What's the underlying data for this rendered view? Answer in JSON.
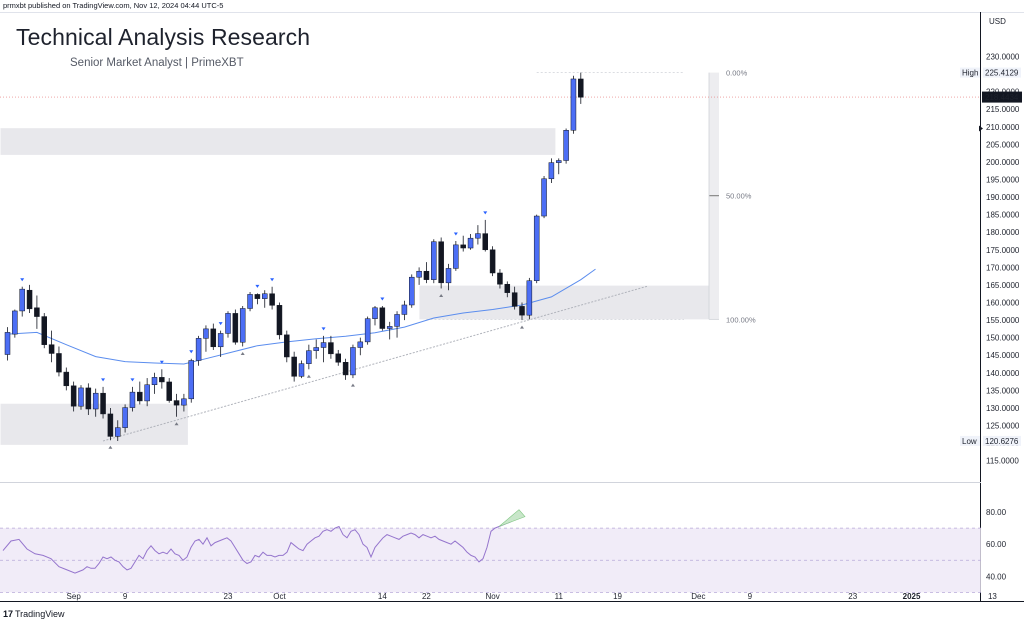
{
  "header": {
    "attribution": "prmxbt published on TradingView.com, Nov 12, 2024 04:44 UTC-5",
    "title": "Technical Analysis Research",
    "subtitle": "Senior Market Analyst | PrimeXBT"
  },
  "footer": {
    "logo_mark": "17",
    "logo_text": "TradingView"
  },
  "colors": {
    "bull": "#4c6ef5",
    "bear": "#131722",
    "ma": "#5b8dee",
    "rsi": "#9575cd",
    "zone": "#e8e8ec",
    "fib": "#cfd2d8"
  },
  "chart_data": {
    "type": "candlestick",
    "currency": "USD",
    "price_axis": {
      "ylim": [
        113.2,
        234.4
      ],
      "ticks": [
        "230.0000",
        "225.0000",
        "220.0000",
        "215.0000",
        "210.0000",
        "205.0000",
        "200.0000",
        "195.0000",
        "190.0000",
        "185.0000",
        "180.0000",
        "175.0000",
        "170.0000",
        "165.0000",
        "160.0000",
        "155.0000",
        "150.0000",
        "145.0000",
        "140.0000",
        "135.0000",
        "130.0000",
        "125.0000",
        "120.0000",
        "115.0000"
      ]
    },
    "labels": {
      "high": {
        "text": "High",
        "value": "225.4129"
      },
      "current": {
        "value": "218.4434"
      },
      "low": {
        "text": "Low",
        "value": "120.6276"
      }
    },
    "fib_levels": [
      {
        "label": "0.00%",
        "price": 225.4129
      },
      {
        "label": "50.00%",
        "price": 190.4
      },
      {
        "label": "100.00%",
        "price": 155.2
      }
    ],
    "zones": [
      {
        "name": "upper-resistance-zone",
        "start_index": 0,
        "end_index": 74,
        "low": 202.0,
        "high": 209.6
      },
      {
        "name": "mid-support-zone",
        "start_index": 57,
        "end_index": 96,
        "low": 155.2,
        "high": 164.8
      },
      {
        "name": "lower-support-zone",
        "start_index": 0,
        "end_index": 24,
        "low": 119.5,
        "high": 131.2
      }
    ],
    "trendline": {
      "from": {
        "index": 13,
        "price": 120.6
      },
      "to": {
        "index": 87,
        "price": 164.6
      }
    },
    "x_axis": {
      "tick_labels": [
        {
          "label": "Sep",
          "index": 9
        },
        {
          "label": "9",
          "index": 16
        },
        {
          "label": "23",
          "index": 30
        },
        {
          "label": "Oct",
          "index": 37
        },
        {
          "label": "14",
          "index": 51
        },
        {
          "label": "22",
          "index": 57
        },
        {
          "label": "Nov",
          "index": 66
        },
        {
          "label": "11",
          "index": 75
        },
        {
          "label": "19",
          "index": 83
        },
        {
          "label": "Dec",
          "index": 94
        },
        {
          "label": "9",
          "index": 101
        },
        {
          "label": "23",
          "index": 115
        },
        {
          "label": "2025",
          "index": 123
        },
        {
          "label": "13",
          "index": 134
        }
      ]
    },
    "candles": [
      [
        145.2,
        153.0,
        143.5,
        151.5
      ],
      [
        151.0,
        158.0,
        150.0,
        157.6
      ],
      [
        157.6,
        164.5,
        156.0,
        163.8
      ],
      [
        163.5,
        165.0,
        157.0,
        158.2
      ],
      [
        158.5,
        162.0,
        152.5,
        156.0
      ],
      [
        156.0,
        157.0,
        147.0,
        148.0
      ],
      [
        148.0,
        152.0,
        143.0,
        145.5
      ],
      [
        145.5,
        147.5,
        139.0,
        140.2
      ],
      [
        140.2,
        141.5,
        135.0,
        136.3
      ],
      [
        136.3,
        137.5,
        129.0,
        130.5
      ],
      [
        130.5,
        136.5,
        129.5,
        135.7
      ],
      [
        135.7,
        137.0,
        128.0,
        129.7
      ],
      [
        129.7,
        135.5,
        127.5,
        134.2
      ],
      [
        134.2,
        136.0,
        127.0,
        128.3
      ],
      [
        128.3,
        130.0,
        120.8,
        121.9
      ],
      [
        121.9,
        126.5,
        120.6,
        124.4
      ],
      [
        124.4,
        131.0,
        123.0,
        130.1
      ],
      [
        130.1,
        136.0,
        129.0,
        134.5
      ],
      [
        134.5,
        137.5,
        131.0,
        132.0
      ],
      [
        132.0,
        138.5,
        130.5,
        136.6
      ],
      [
        136.6,
        140.0,
        134.0,
        138.7
      ],
      [
        138.7,
        141.0,
        135.5,
        137.4
      ],
      [
        137.4,
        138.5,
        131.5,
        132.1
      ],
      [
        132.1,
        134.0,
        127.5,
        130.8
      ],
      [
        130.8,
        134.0,
        129.0,
        132.6
      ],
      [
        132.6,
        144.0,
        131.5,
        143.5
      ],
      [
        143.5,
        150.5,
        142.0,
        149.8
      ],
      [
        149.8,
        153.5,
        146.0,
        152.5
      ],
      [
        152.5,
        154.0,
        146.5,
        147.4
      ],
      [
        147.4,
        152.0,
        144.5,
        151.2
      ],
      [
        151.2,
        157.5,
        150.0,
        156.9
      ],
      [
        156.9,
        158.0,
        148.0,
        148.7
      ],
      [
        148.7,
        159.0,
        147.5,
        158.3
      ],
      [
        158.3,
        163.0,
        157.5,
        162.3
      ],
      [
        162.3,
        162.6,
        159.5,
        161.1
      ],
      [
        161.1,
        163.5,
        158.5,
        162.5
      ],
      [
        162.5,
        164.5,
        158.0,
        159.2
      ],
      [
        159.2,
        160.0,
        149.5,
        150.8
      ],
      [
        150.8,
        152.0,
        143.0,
        144.5
      ],
      [
        144.5,
        146.0,
        137.5,
        139.0
      ],
      [
        139.0,
        143.5,
        138.5,
        142.6
      ],
      [
        142.6,
        148.0,
        141.0,
        146.3
      ],
      [
        146.3,
        149.5,
        144.0,
        147.2
      ],
      [
        147.2,
        150.5,
        143.0,
        148.6
      ],
      [
        148.6,
        150.5,
        144.0,
        145.4
      ],
      [
        145.4,
        146.5,
        142.0,
        143.0
      ],
      [
        143.0,
        144.0,
        138.0,
        139.4
      ],
      [
        139.4,
        148.0,
        138.5,
        147.2
      ],
      [
        147.2,
        150.0,
        145.0,
        148.8
      ],
      [
        148.8,
        156.0,
        148.0,
        155.4
      ],
      [
        155.4,
        159.0,
        153.5,
        158.5
      ],
      [
        158.5,
        159.0,
        152.0,
        152.6
      ],
      [
        152.6,
        154.5,
        149.5,
        153.2
      ],
      [
        153.2,
        157.5,
        150.0,
        156.6
      ],
      [
        156.6,
        160.5,
        155.0,
        159.3
      ],
      [
        159.3,
        168.0,
        158.5,
        167.2
      ],
      [
        167.2,
        170.0,
        165.0,
        168.9
      ],
      [
        168.9,
        171.5,
        165.5,
        166.5
      ],
      [
        166.5,
        178.0,
        165.5,
        177.3
      ],
      [
        177.3,
        178.5,
        164.0,
        165.6
      ],
      [
        165.6,
        171.0,
        163.5,
        169.7
      ],
      [
        169.7,
        177.5,
        169.0,
        176.4
      ],
      [
        176.4,
        179.0,
        174.5,
        175.5
      ],
      [
        175.5,
        179.5,
        175.0,
        178.3
      ],
      [
        178.3,
        182.0,
        176.5,
        179.6
      ],
      [
        179.6,
        183.5,
        174.5,
        175.0
      ],
      [
        175.0,
        176.0,
        167.5,
        168.4
      ],
      [
        168.4,
        169.5,
        164.0,
        165.2
      ],
      [
        165.2,
        166.0,
        161.5,
        162.8
      ],
      [
        162.8,
        164.5,
        158.0,
        158.9
      ],
      [
        158.9,
        160.0,
        155.0,
        156.4
      ],
      [
        156.4,
        167.0,
        155.2,
        166.2
      ],
      [
        166.2,
        185.0,
        165.5,
        184.6
      ],
      [
        184.6,
        196.0,
        184.0,
        195.2
      ],
      [
        195.2,
        201.0,
        194.0,
        199.8
      ],
      [
        199.8,
        201.0,
        196.5,
        200.4
      ],
      [
        200.4,
        209.5,
        199.5,
        209.0
      ],
      [
        209.0,
        224.5,
        208.0,
        223.6
      ],
      [
        223.6,
        225.4,
        216.5,
        218.4
      ]
    ],
    "moving_average": [
      [
        0,
        151.0
      ],
      [
        4,
        151.5
      ],
      [
        8,
        148.0
      ],
      [
        12,
        144.6
      ],
      [
        16,
        143.2
      ],
      [
        20,
        142.8
      ],
      [
        24,
        142.5
      ],
      [
        27,
        144.0
      ],
      [
        30,
        145.6
      ],
      [
        34,
        147.7
      ],
      [
        38,
        148.8
      ],
      [
        42,
        149.7
      ],
      [
        46,
        150.4
      ],
      [
        50,
        151.4
      ],
      [
        54,
        153.0
      ],
      [
        58,
        155.6
      ],
      [
        62,
        157.0
      ],
      [
        66,
        158.0
      ],
      [
        70,
        159.3
      ],
      [
        74,
        161.6
      ],
      [
        78,
        166.5
      ],
      [
        80,
        169.5
      ]
    ],
    "swing_highs": [
      2,
      13,
      17,
      21,
      25,
      29,
      34,
      36,
      43,
      51,
      61,
      65
    ],
    "swing_lows": [
      14,
      23,
      32,
      41,
      47,
      59,
      70
    ],
    "rsi": {
      "levels": [
        "80.00",
        "60.00",
        "40.00"
      ],
      "ylim": [
        29,
        90
      ],
      "band": [
        70,
        30
      ],
      "values": [
        [
          0,
          56
        ],
        [
          2,
          62
        ],
        [
          4,
          63
        ],
        [
          6,
          57
        ],
        [
          8,
          54
        ],
        [
          10,
          53
        ],
        [
          12,
          51
        ],
        [
          14,
          46
        ],
        [
          16,
          44
        ],
        [
          18,
          42
        ],
        [
          19,
          43
        ],
        [
          20,
          44
        ],
        [
          21,
          46
        ],
        [
          22,
          45
        ],
        [
          23,
          45
        ],
        [
          24,
          48
        ],
        [
          25,
          52
        ],
        [
          26,
          51
        ],
        [
          27,
          52
        ],
        [
          28,
          50
        ],
        [
          29,
          49
        ],
        [
          30,
          46
        ],
        [
          31,
          44
        ],
        [
          32,
          45
        ],
        [
          33,
          49
        ],
        [
          34,
          53
        ],
        [
          35,
          51
        ],
        [
          36,
          56
        ],
        [
          37,
          59
        ],
        [
          38,
          56
        ],
        [
          39,
          54
        ],
        [
          40,
          55
        ],
        [
          41,
          54
        ],
        [
          42,
          57
        ],
        [
          43,
          54
        ],
        [
          44,
          53
        ],
        [
          45,
          50
        ],
        [
          46,
          52
        ],
        [
          47,
          58
        ],
        [
          48,
          62
        ],
        [
          49,
          63
        ],
        [
          50,
          60
        ],
        [
          51,
          64
        ],
        [
          52,
          59
        ],
        [
          53,
          61
        ],
        [
          54,
          62
        ],
        [
          55,
          63
        ],
        [
          56,
          64
        ],
        [
          57,
          62
        ],
        [
          58,
          58
        ],
        [
          59,
          54
        ],
        [
          60,
          50
        ],
        [
          61,
          48
        ],
        [
          62,
          49
        ],
        [
          63,
          53
        ],
        [
          64,
          52
        ],
        [
          65,
          55
        ],
        [
          66,
          53
        ],
        [
          67,
          53
        ],
        [
          68,
          52
        ],
        [
          69,
          53
        ],
        [
          70,
          53
        ],
        [
          71,
          55
        ],
        [
          72,
          61
        ],
        [
          73,
          59
        ],
        [
          74,
          57
        ],
        [
          75,
          56
        ],
        [
          76,
          60
        ],
        [
          77,
          62
        ],
        [
          78,
          64
        ],
        [
          79,
          65
        ],
        [
          80,
          68
        ],
        [
          81,
          69
        ],
        [
          82,
          68
        ],
        [
          83,
          70
        ],
        [
          84,
          71
        ],
        [
          85,
          66
        ],
        [
          86,
          64
        ],
        [
          87,
          68
        ],
        [
          88,
          69
        ],
        [
          89,
          66
        ],
        [
          90,
          60
        ],
        [
          91,
          58
        ],
        [
          92,
          52
        ],
        [
          93,
          58
        ],
        [
          94,
          61
        ],
        [
          95,
          64
        ],
        [
          96,
          66
        ],
        [
          97,
          65
        ],
        [
          98,
          64
        ],
        [
          99,
          63
        ],
        [
          100,
          65
        ],
        [
          101,
          66
        ],
        [
          102,
          67
        ],
        [
          103,
          66
        ],
        [
          104,
          64
        ],
        [
          105,
          66
        ],
        [
          106,
          65
        ],
        [
          107,
          64
        ],
        [
          108,
          65
        ],
        [
          109,
          63
        ],
        [
          110,
          62
        ],
        [
          111,
          61
        ],
        [
          112,
          60
        ],
        [
          113,
          62
        ],
        [
          114,
          60
        ],
        [
          115,
          58
        ],
        [
          116,
          55
        ],
        [
          117,
          53
        ],
        [
          118,
          52
        ],
        [
          119,
          49
        ],
        [
          120,
          51
        ],
        [
          121,
          58
        ],
        [
          122,
          68
        ],
        [
          123,
          70
        ],
        [
          124,
          71
        ],
        [
          125,
          72
        ],
        [
          126,
          73
        ],
        [
          127,
          74
        ],
        [
          128,
          77
        ],
        [
          129,
          79
        ]
      ]
    }
  }
}
